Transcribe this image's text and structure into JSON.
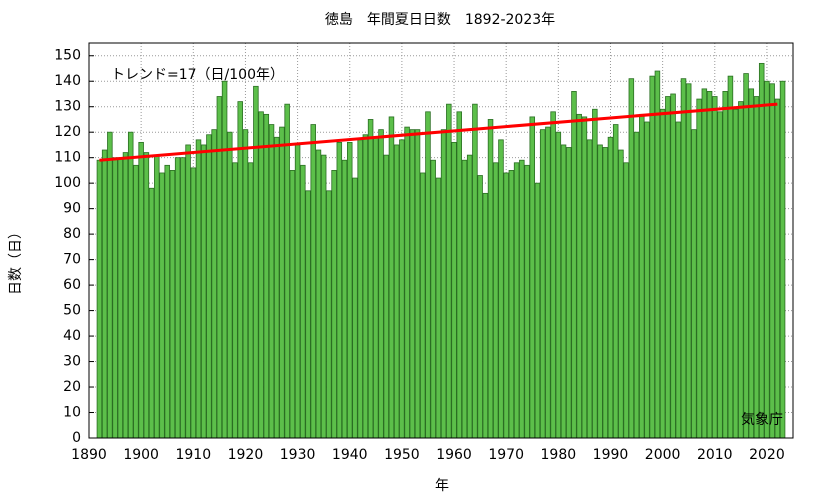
{
  "chart_data": {
    "type": "bar",
    "title": "徳島　年間夏日日数　1892-2023年",
    "x_label": "年",
    "y_label": "日数（日）",
    "annotation": "トレンド=17（日/100年）",
    "source": "気象庁",
    "x": [
      1892,
      1893,
      1894,
      1895,
      1896,
      1897,
      1898,
      1899,
      1900,
      1901,
      1902,
      1903,
      1904,
      1905,
      1906,
      1907,
      1908,
      1909,
      1910,
      1911,
      1912,
      1913,
      1914,
      1915,
      1916,
      1917,
      1918,
      1919,
      1920,
      1921,
      1922,
      1923,
      1924,
      1925,
      1926,
      1927,
      1928,
      1929,
      1930,
      1931,
      1932,
      1933,
      1934,
      1935,
      1936,
      1937,
      1938,
      1939,
      1940,
      1941,
      1942,
      1943,
      1944,
      1945,
      1946,
      1947,
      1948,
      1949,
      1950,
      1951,
      1952,
      1953,
      1954,
      1955,
      1956,
      1957,
      1958,
      1959,
      1960,
      1961,
      1962,
      1963,
      1964,
      1965,
      1966,
      1967,
      1968,
      1969,
      1970,
      1971,
      1972,
      1973,
      1974,
      1975,
      1976,
      1977,
      1978,
      1979,
      1980,
      1981,
      1982,
      1983,
      1984,
      1985,
      1986,
      1987,
      1988,
      1989,
      1990,
      1991,
      1992,
      1993,
      1994,
      1995,
      1996,
      1997,
      1998,
      1999,
      2000,
      2001,
      2002,
      2003,
      2004,
      2005,
      2006,
      2007,
      2008,
      2009,
      2010,
      2011,
      2012,
      2013,
      2014,
      2015,
      2016,
      2017,
      2018,
      2019,
      2020,
      2021,
      2022,
      2023
    ],
    "values": [
      109,
      113,
      120,
      110,
      110,
      112,
      120,
      107,
      116,
      112,
      98,
      111,
      104,
      107,
      105,
      110,
      110,
      115,
      106,
      117,
      115,
      119,
      121,
      134,
      140,
      120,
      108,
      132,
      121,
      108,
      138,
      128,
      127,
      123,
      118,
      122,
      131,
      105,
      115,
      107,
      97,
      123,
      113,
      111,
      97,
      105,
      116,
      109,
      116,
      102,
      117,
      119,
      125,
      118,
      121,
      111,
      126,
      115,
      117,
      122,
      121,
      121,
      104,
      128,
      109,
      102,
      121,
      131,
      116,
      128,
      109,
      111,
      131,
      103,
      96,
      125,
      108,
      117,
      104,
      105,
      108,
      109,
      107,
      126,
      100,
      121,
      122,
      128,
      120,
      115,
      114,
      136,
      127,
      126,
      117,
      129,
      115,
      114,
      118,
      123,
      113,
      108,
      141,
      120,
      127,
      124,
      142,
      144,
      129,
      134,
      135,
      124,
      141,
      139,
      121,
      133,
      137,
      136,
      134,
      128,
      136,
      142,
      129,
      132,
      143,
      137,
      134,
      147,
      140,
      139,
      133,
      140
    ],
    "color": "#5cbf4a",
    "edge_color": "#2a6e22",
    "trend": {
      "x": [
        1892,
        2022
      ],
      "values": [
        109,
        131
      ],
      "color": "#ff0000"
    },
    "xlim": [
      1890,
      2025
    ],
    "ylim": [
      0,
      155
    ],
    "xticks": [
      1890,
      1900,
      1910,
      1920,
      1930,
      1940,
      1950,
      1960,
      1970,
      1980,
      1990,
      2000,
      2010,
      2020
    ],
    "yticks": [
      0,
      10,
      20,
      30,
      40,
      50,
      60,
      70,
      80,
      90,
      100,
      110,
      120,
      130,
      140,
      150
    ],
    "grid": true
  }
}
